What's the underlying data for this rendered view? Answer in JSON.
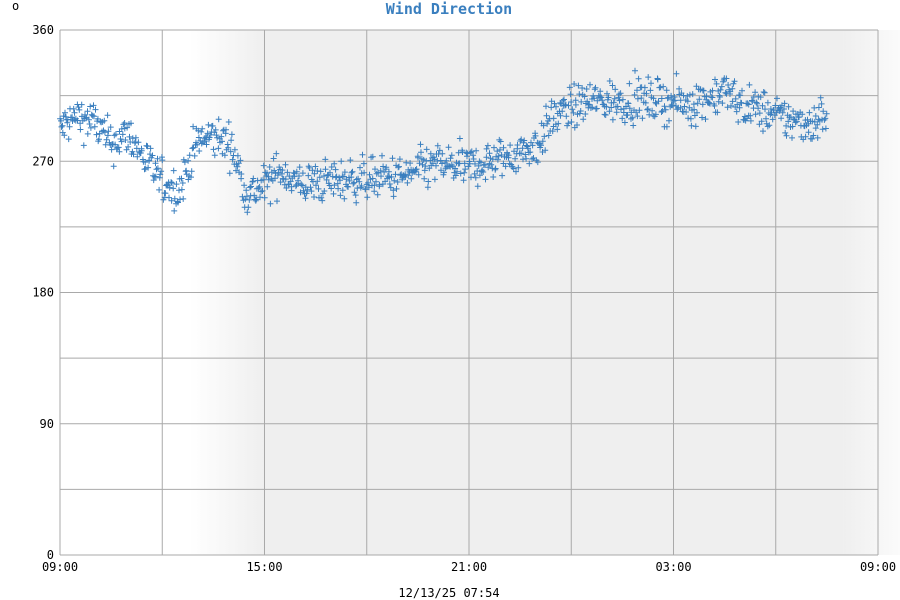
{
  "corner_mark": "o",
  "chart_data": {
    "type": "scatter",
    "title": "Wind Direction",
    "timestamp": "12/13/25 07:54",
    "xlabel": "",
    "ylabel": "",
    "ylim": [
      0,
      360
    ],
    "y_ticks": [
      0,
      90,
      180,
      270,
      360
    ],
    "y_gridlines": [
      0,
      45,
      90,
      135,
      180,
      225,
      270,
      315,
      360
    ],
    "x_ticks": [
      "09:00",
      "15:00",
      "21:00",
      "03:00",
      "09:00"
    ],
    "x_range_hours": [
      0,
      24
    ],
    "x_gridline_hours": [
      0,
      3,
      6,
      9,
      12,
      15,
      18,
      21,
      24
    ],
    "night_shading_hours": [
      6,
      23
    ],
    "grid": true,
    "marker": "+",
    "colors": {
      "series": "#3a7fbf",
      "title": "#3a7fbf",
      "grid": "#a9a9a9",
      "night": "#efefef"
    },
    "anchors": [
      {
        "x": "09:00",
        "y": 292
      },
      {
        "x": "09:30",
        "y": 301
      },
      {
        "x": "10:00",
        "y": 297
      },
      {
        "x": "10:30",
        "y": 282
      },
      {
        "x": "11:00",
        "y": 289
      },
      {
        "x": "11:30",
        "y": 271
      },
      {
        "x": "12:00",
        "y": 256
      },
      {
        "x": "12:30",
        "y": 250
      },
      {
        "x": "13:00",
        "y": 283
      },
      {
        "x": "13:30",
        "y": 287
      },
      {
        "x": "14:00",
        "y": 282
      },
      {
        "x": "14:30",
        "y": 247
      },
      {
        "x": "15:00",
        "y": 253
      },
      {
        "x": "15:30",
        "y": 264
      },
      {
        "x": "16:00",
        "y": 254
      },
      {
        "x": "17:00",
        "y": 257
      },
      {
        "x": "18:00",
        "y": 258
      },
      {
        "x": "19:00",
        "y": 259
      },
      {
        "x": "20:00",
        "y": 268
      },
      {
        "x": "21:00",
        "y": 266
      },
      {
        "x": "22:00",
        "y": 272
      },
      {
        "x": "23:00",
        "y": 281
      },
      {
        "x": "23:30",
        "y": 301
      },
      {
        "x": "00:30",
        "y": 311
      },
      {
        "x": "01:30",
        "y": 311
      },
      {
        "x": "02:30",
        "y": 312
      },
      {
        "x": "03:30",
        "y": 309
      },
      {
        "x": "04:30",
        "y": 318
      },
      {
        "x": "05:00",
        "y": 308
      },
      {
        "x": "05:30",
        "y": 306
      },
      {
        "x": "06:00",
        "y": 301
      },
      {
        "x": "06:30",
        "y": 298
      },
      {
        "x": "07:00",
        "y": 296
      },
      {
        "x": "07:30",
        "y": 303
      }
    ],
    "spread_deg": 13,
    "sample_minutes": 1.3
  }
}
